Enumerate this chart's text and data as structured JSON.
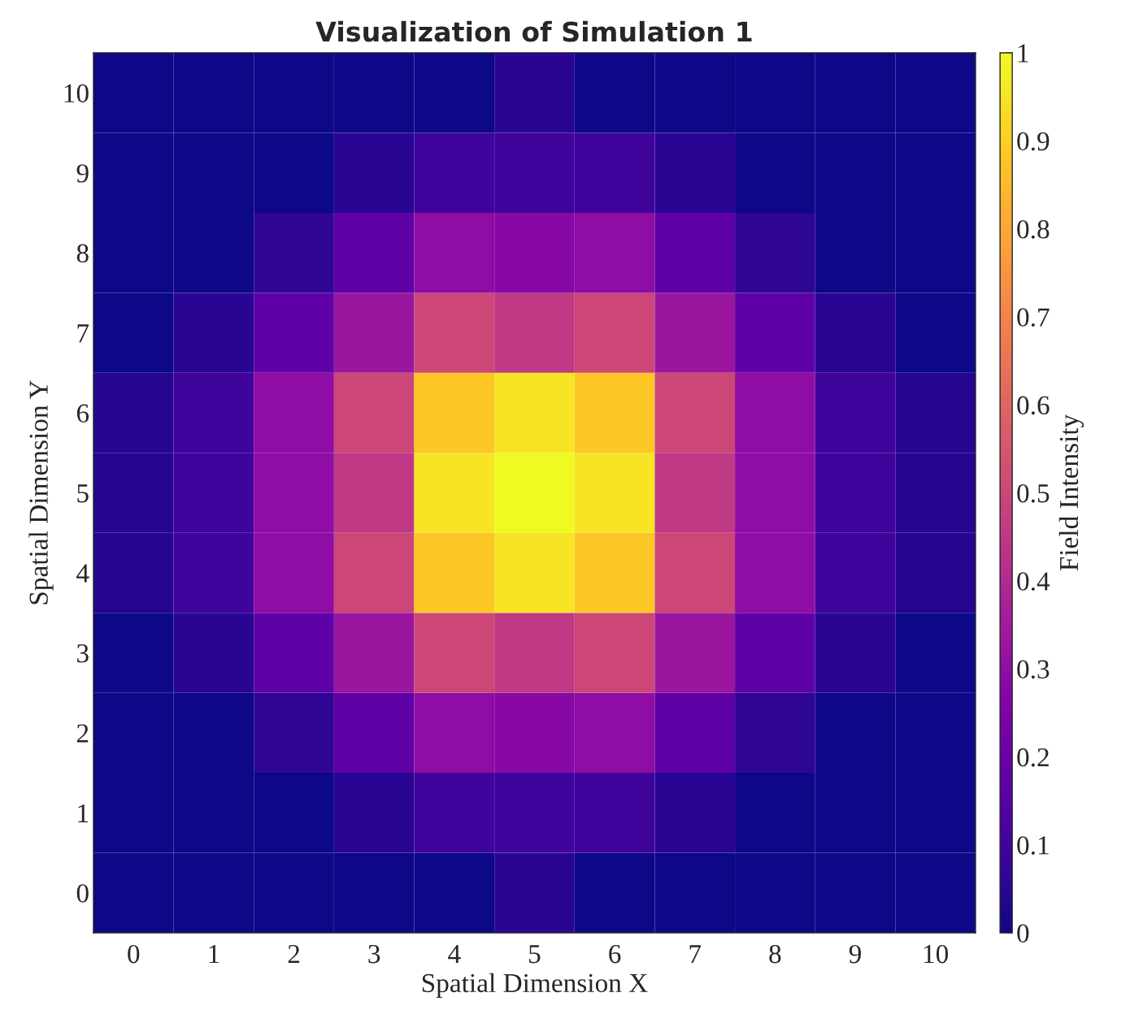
{
  "chart_data": {
    "type": "heatmap",
    "title": "Visualization of Simulation 1",
    "xlabel": "Spatial Dimension X",
    "ylabel": "Spatial Dimension Y",
    "clabel": "Field Intensity",
    "categories": [
      "0",
      "1",
      "2",
      "3",
      "4",
      "5",
      "6",
      "7",
      "8",
      "9",
      "10"
    ],
    "y_categories": [
      "10",
      "9",
      "8",
      "7",
      "6",
      "5",
      "4",
      "3",
      "2",
      "1",
      "0"
    ],
    "cells": [
      [
        0,
        0,
        0,
        0,
        0,
        0.05,
        0,
        0,
        0,
        0,
        0
      ],
      [
        0,
        0,
        0,
        0.05,
        0.09,
        0.09,
        0.09,
        0.05,
        0,
        0,
        0
      ],
      [
        0,
        0,
        0.06,
        0.17,
        0.3,
        0.28,
        0.3,
        0.17,
        0.06,
        0,
        0
      ],
      [
        0,
        0.05,
        0.17,
        0.33,
        0.5,
        0.45,
        0.5,
        0.33,
        0.17,
        0.05,
        0
      ],
      [
        0.04,
        0.09,
        0.3,
        0.5,
        0.88,
        0.95,
        0.88,
        0.5,
        0.3,
        0.09,
        0.04
      ],
      [
        0.04,
        0.09,
        0.3,
        0.45,
        0.95,
        1.0,
        0.95,
        0.45,
        0.3,
        0.09,
        0.04
      ],
      [
        0.04,
        0.09,
        0.3,
        0.5,
        0.88,
        0.95,
        0.88,
        0.5,
        0.3,
        0.09,
        0.04
      ],
      [
        0,
        0.05,
        0.17,
        0.33,
        0.5,
        0.45,
        0.5,
        0.33,
        0.17,
        0.05,
        0
      ],
      [
        0,
        0,
        0.06,
        0.17,
        0.3,
        0.28,
        0.3,
        0.17,
        0.06,
        0,
        0
      ],
      [
        0,
        0,
        0,
        0.05,
        0.09,
        0.09,
        0.09,
        0.05,
        0,
        0,
        0
      ],
      [
        0,
        0,
        0,
        0,
        0,
        0.05,
        0,
        0,
        0,
        0,
        0
      ]
    ],
    "clim": [
      0,
      1
    ],
    "cticks": [
      0,
      0.1,
      0.2,
      0.3,
      0.4,
      0.5,
      0.6,
      0.7,
      0.8,
      0.9,
      1
    ]
  }
}
